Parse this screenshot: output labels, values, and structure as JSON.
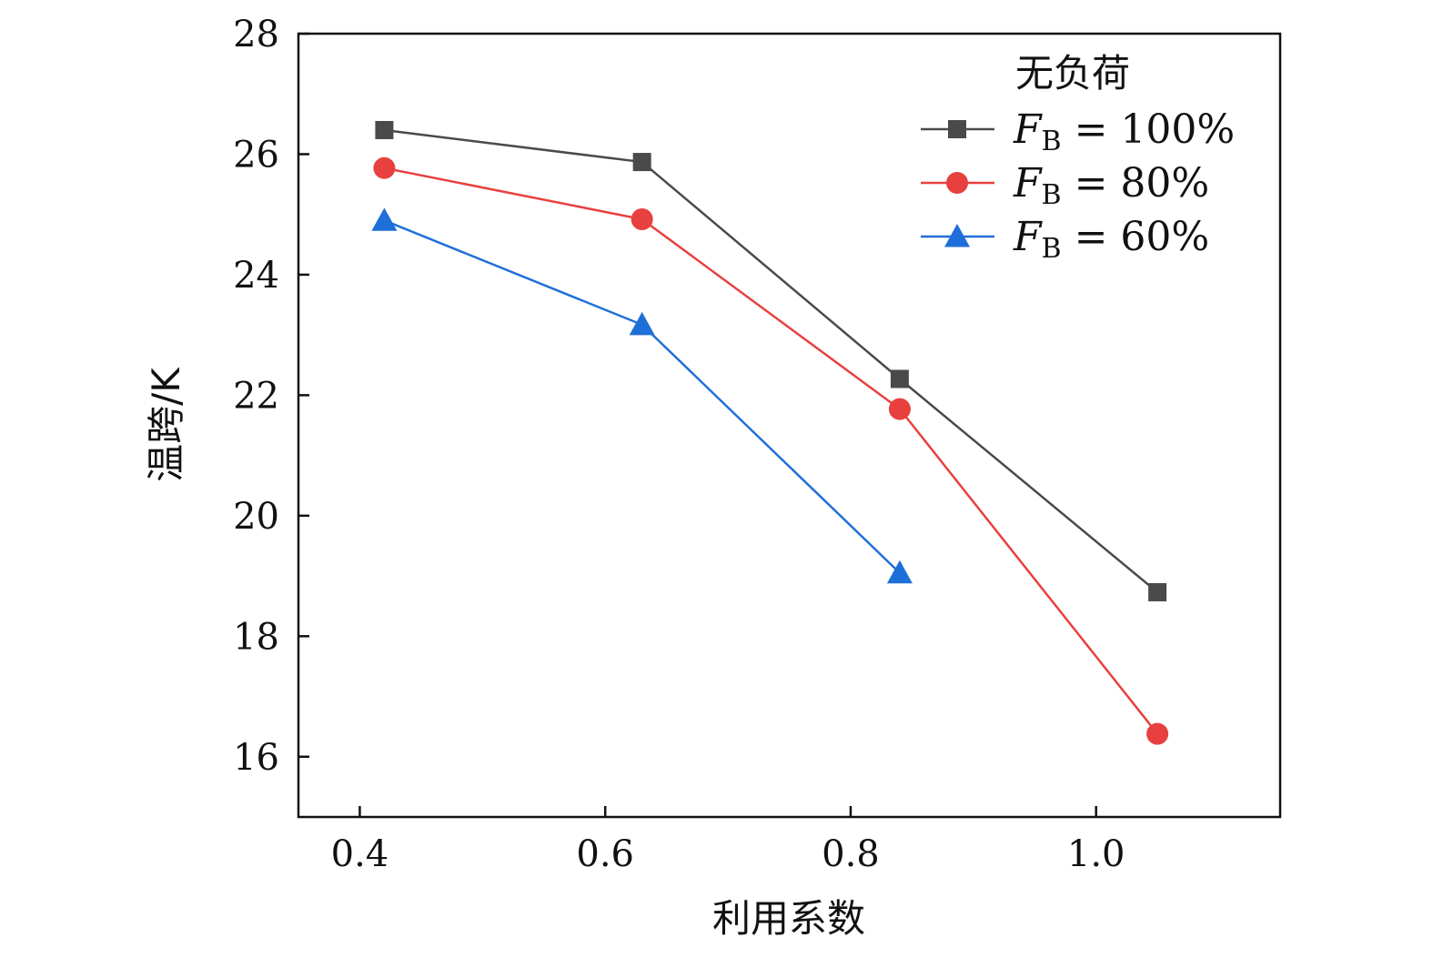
{
  "chart_data": {
    "type": "line",
    "title": "",
    "xlabel": "利用系数",
    "ylabel": "温跨/K",
    "xlim": [
      0.35,
      1.15
    ],
    "ylim": [
      15,
      28
    ],
    "xticks": [
      0.4,
      0.6,
      0.8,
      1.0
    ],
    "xtick_labels": [
      "0.4",
      "0.6",
      "0.8",
      "1.0"
    ],
    "yticks": [
      16,
      18,
      20,
      22,
      24,
      26,
      28
    ],
    "ytick_labels": [
      "16",
      "18",
      "20",
      "22",
      "24",
      "26",
      "28"
    ],
    "grid": false,
    "legend": {
      "title": "无负荷",
      "position": "top-right"
    },
    "series": [
      {
        "name": "F_B = 100%",
        "label_main": "F",
        "label_sub": "B",
        "label_rest": " = 100%",
        "color": "#4a4a4a",
        "marker": "square",
        "x": [
          0.42,
          0.63,
          0.84,
          1.05
        ],
        "values": [
          26.4,
          25.87,
          22.27,
          18.73
        ]
      },
      {
        "name": "F_B = 80%",
        "label_main": "F",
        "label_sub": "B",
        "label_rest": " = 80%",
        "color": "#e8403f",
        "marker": "circle",
        "x": [
          0.42,
          0.63,
          0.84,
          1.05
        ],
        "values": [
          25.77,
          24.92,
          21.77,
          16.38
        ]
      },
      {
        "name": "F_B = 60%",
        "label_main": "F",
        "label_sub": "B",
        "label_rest": " = 60%",
        "color": "#1f6fd9",
        "marker": "triangle",
        "x": [
          0.42,
          0.63,
          0.84
        ],
        "values": [
          24.9,
          23.17,
          19.05
        ]
      }
    ]
  }
}
